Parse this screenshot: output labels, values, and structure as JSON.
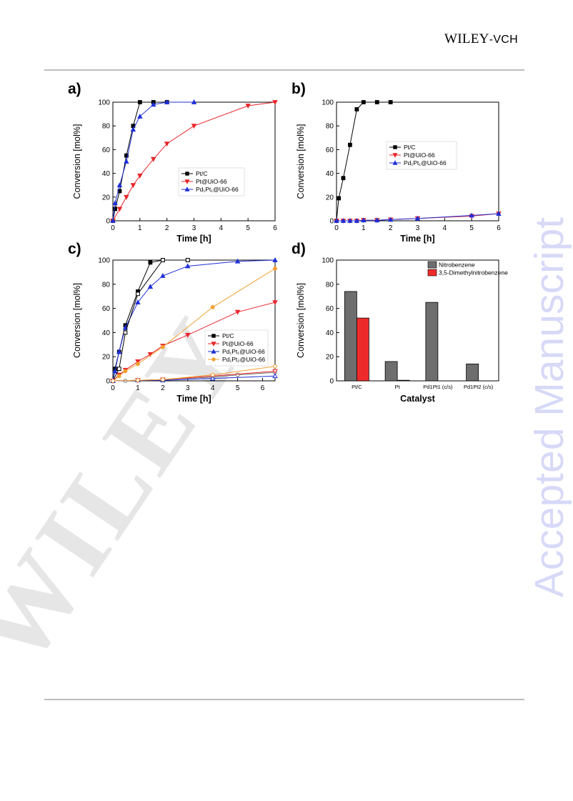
{
  "header": {
    "publisher_main": "WILEY",
    "publisher_suffix": "-VCH"
  },
  "side_stamp": "Accepted Manuscript",
  "watermark": "WILEY",
  "colors": {
    "black": "#000000",
    "red": "#e8262b",
    "blue": "#1f2fd8",
    "orange": "#f0a030",
    "bar_gray": "#6e6e6e",
    "bar_red": "#ee2b2b",
    "stamp": "#d7d9f7"
  },
  "chart_data": [
    {
      "panel": "a)",
      "type": "line",
      "xlabel": "Time [h]",
      "ylabel": "Conversion [mol%]",
      "xlim": [
        0,
        6
      ],
      "ylim": [
        0,
        100
      ],
      "xticks": [
        0,
        1,
        2,
        3,
        4,
        5,
        6
      ],
      "yticks": [
        0,
        20,
        40,
        60,
        80,
        100
      ],
      "legend_position": "center-right",
      "series": [
        {
          "name": "Pt/C",
          "color": "#000000",
          "marker": "square",
          "x": [
            0,
            0.083,
            0.25,
            0.5,
            0.75,
            1,
            1.5,
            2
          ],
          "y": [
            0,
            10,
            25,
            55,
            80,
            100,
            100,
            100
          ]
        },
        {
          "name": "Pt@UiO-66",
          "color": "#e8262b",
          "marker": "triangle-down",
          "x": [
            0,
            0.25,
            0.5,
            0.75,
            1,
            1.5,
            2,
            3,
            5,
            6
          ],
          "y": [
            0,
            10,
            20,
            30,
            38,
            52,
            65,
            80,
            97,
            100
          ]
        },
        {
          "name": "Pd₁Pt₁@UiO-66",
          "color": "#1f2fd8",
          "marker": "triangle-up",
          "x": [
            0,
            0.083,
            0.25,
            0.5,
            0.75,
            1,
            1.5,
            2,
            3
          ],
          "y": [
            0,
            15,
            30,
            50,
            77,
            88,
            98,
            100,
            100
          ]
        }
      ]
    },
    {
      "panel": "b)",
      "type": "line",
      "xlabel": "Time [h]",
      "ylabel": "Conversion [mol%]",
      "xlim": [
        0,
        6
      ],
      "ylim": [
        0,
        100
      ],
      "xticks": [
        0,
        1,
        2,
        3,
        4,
        5,
        6
      ],
      "yticks": [
        0,
        20,
        40,
        60,
        80,
        100
      ],
      "legend_position": "center-right",
      "series": [
        {
          "name": "Pt/C",
          "color": "#000000",
          "marker": "square",
          "x": [
            0,
            0.083,
            0.25,
            0.5,
            0.75,
            1,
            1.5,
            2
          ],
          "y": [
            0,
            19,
            36,
            64,
            94,
            100,
            100,
            100
          ]
        },
        {
          "name": "Pt@UiO-66",
          "color": "#e8262b",
          "marker": "triangle-down",
          "x": [
            0,
            0.25,
            0.5,
            0.75,
            1,
            1.5,
            2,
            3,
            5,
            6
          ],
          "y": [
            0,
            0,
            0,
            0,
            0.5,
            0.5,
            1,
            2,
            4,
            6
          ]
        },
        {
          "name": "Pd₁Pt₁@UiO-66",
          "color": "#1f2fd8",
          "marker": "triangle-up",
          "x": [
            0,
            0.25,
            0.5,
            0.75,
            1,
            1.5,
            2,
            3,
            5,
            6
          ],
          "y": [
            0,
            0,
            0,
            0,
            0.5,
            0.5,
            1,
            2,
            4.5,
            6
          ]
        }
      ]
    },
    {
      "panel": "c)",
      "type": "line",
      "xlabel": "Time [h]",
      "ylabel": "Conversion [mol%]",
      "xlim": [
        0,
        6.5
      ],
      "ylim": [
        0,
        100
      ],
      "xticks": [
        0,
        1,
        2,
        3,
        4,
        5,
        6
      ],
      "yticks": [
        0,
        20,
        40,
        60,
        80,
        100
      ],
      "legend_position": "center-right",
      "series": [
        {
          "name": "Pt/C",
          "color": "#000000",
          "marker": "square",
          "x": [
            0,
            0.083,
            0.25,
            0.5,
            1,
            1.5,
            2,
            3
          ],
          "y": [
            0,
            10,
            24,
            46,
            74,
            98,
            100,
            100
          ]
        },
        {
          "name": "Pt@UiO-66",
          "color": "#e8262b",
          "marker": "triangle-down",
          "x": [
            0,
            0.25,
            0.5,
            1,
            1.5,
            2,
            3,
            5,
            6.5
          ],
          "y": [
            0,
            5,
            9,
            16,
            22,
            29,
            38,
            57,
            65
          ]
        },
        {
          "name": "Pd₁Pt₁@UiO-66",
          "color": "#1f2fd8",
          "marker": "triangle-up",
          "x": [
            0,
            0.083,
            0.25,
            0.5,
            1,
            1.5,
            2,
            3,
            5,
            6.5
          ],
          "y": [
            0,
            8,
            24,
            44,
            65,
            78,
            87,
            95,
            99,
            100
          ]
        },
        {
          "name": "Pd₁Pt₂@UiO-66",
          "color": "#f0a030",
          "marker": "circle",
          "x": [
            0,
            0.25,
            0.5,
            1,
            2,
            4,
            6.5
          ],
          "y": [
            0,
            4,
            8,
            14,
            28,
            61,
            93
          ]
        },
        {
          "name": "",
          "color": "#000000",
          "marker": "open-square",
          "x": [
            0,
            0.25,
            0.5,
            1,
            2,
            3
          ],
          "y": [
            0,
            10,
            40,
            72,
            100,
            100
          ]
        },
        {
          "name": "",
          "color": "#777777",
          "marker": "open-circle",
          "x": [
            0,
            0.5,
            1,
            2,
            4,
            5,
            6.5
          ],
          "y": [
            0,
            0,
            0.5,
            1,
            3,
            5,
            7
          ]
        },
        {
          "name": "",
          "color": "#e8262b",
          "marker": "open-triangle-down",
          "x": [
            0,
            1,
            2,
            4,
            6.5
          ],
          "y": [
            0,
            0.5,
            1,
            4,
            8
          ]
        },
        {
          "name": "",
          "color": "#1f2fd8",
          "marker": "open-triangle-up",
          "x": [
            0,
            1,
            2,
            4,
            6.5
          ],
          "y": [
            0,
            0.5,
            0.5,
            2,
            4
          ]
        },
        {
          "name": "",
          "color": "#f0a030",
          "marker": "open-circle",
          "x": [
            0,
            1,
            2,
            4,
            6.5
          ],
          "y": [
            0,
            0.5,
            1,
            5,
            12
          ]
        }
      ]
    },
    {
      "panel": "d)",
      "type": "bar",
      "xlabel": "Catalyst",
      "ylabel": "Conversion [mol%]",
      "ylim": [
        0,
        100
      ],
      "yticks": [
        0,
        20,
        40,
        60,
        80,
        100
      ],
      "categories": [
        "Pt/C",
        "Pt",
        "Pd1Pt1 (c/s)",
        "Pd1Pt2 (c/s)"
      ],
      "legend_position": "top-right",
      "series": [
        {
          "name": "Nitrobenzene",
          "color": "#6e6e6e",
          "values": [
            74,
            16,
            65,
            14
          ]
        },
        {
          "name": "3,5-Dimethylnitrobenzene",
          "color": "#ee2b2b",
          "values": [
            52,
            0.5,
            0,
            0
          ]
        }
      ]
    }
  ]
}
